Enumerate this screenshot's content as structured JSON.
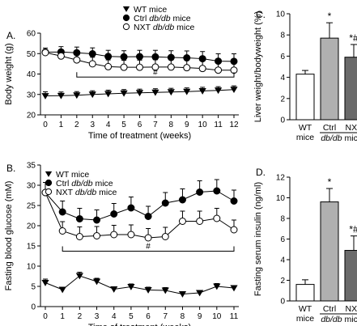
{
  "colors": {
    "ink": "#000000",
    "paper": "#ffffff",
    "ctrl_bar": "#b0b0b0",
    "nxt_bar": "#6a6a6a"
  },
  "chart_data": [
    {
      "panel": "A.",
      "type": "line",
      "xlabel": "Time of treatment (weeks)",
      "ylabel": "Body weight (g)",
      "x": [
        0,
        1,
        2,
        3,
        4,
        5,
        6,
        7,
        8,
        9,
        10,
        11,
        12
      ],
      "xticks": [
        "0",
        "1",
        "2",
        "3",
        "4",
        "5",
        "6",
        "7",
        "8",
        "9",
        "10",
        "11",
        "12"
      ],
      "ylim": [
        20,
        60
      ],
      "yticks": [
        20,
        30,
        40,
        50,
        60
      ],
      "legend": "top-center",
      "series": [
        {
          "name": "WT mice",
          "marker": "triangle-down",
          "values": [
            29.3,
            29.4,
            29.6,
            30.0,
            30.3,
            30.6,
            30.8,
            31.0,
            31.2,
            31.4,
            31.7,
            32.0,
            32.4
          ],
          "error": [
            2.0,
            1.8,
            1.8,
            1.8,
            1.8,
            1.8,
            1.8,
            1.8,
            1.8,
            1.8,
            1.8,
            1.8,
            1.8
          ]
        },
        {
          "name": "Ctrl db/db mice",
          "marker": "circle-filled",
          "values": [
            50.7,
            50.8,
            50.4,
            49.9,
            48.6,
            48.4,
            48.5,
            48.4,
            48.1,
            47.9,
            47.5,
            46.3,
            46.2
          ],
          "error": [
            2.0,
            2.6,
            2.8,
            2.9,
            3.0,
            3.0,
            3.1,
            3.2,
            3.3,
            3.4,
            3.5,
            3.6,
            3.7
          ]
        },
        {
          "name": "NXT db/db mice",
          "marker": "circle-open",
          "values": [
            50.5,
            48.8,
            46.9,
            45.0,
            43.6,
            43.3,
            43.3,
            43.4,
            43.4,
            43.1,
            42.7,
            41.9,
            41.9
          ],
          "error": [
            1.2,
            2.5,
            3.0,
            3.2,
            3.3,
            3.4,
            3.5,
            3.6,
            3.7,
            3.8,
            3.8,
            3.9,
            3.9
          ]
        }
      ],
      "annotation": {
        "text": "#",
        "from_x": 2,
        "to_x": 12,
        "y": 38.5
      }
    },
    {
      "panel": "B.",
      "type": "line",
      "xlabel": "Time of treatment (weeks)",
      "ylabel": "Fasting blood glucose (mM)",
      "x": [
        0,
        1,
        2,
        3,
        4,
        5,
        6,
        7,
        8,
        9,
        10,
        11
      ],
      "xticks": [
        "0",
        "1",
        "2",
        "3",
        "4",
        "5",
        "6",
        "7",
        "8",
        "9",
        "10",
        "11"
      ],
      "ylim": [
        0,
        35
      ],
      "yticks": [
        0,
        5,
        10,
        15,
        20,
        25,
        30,
        35
      ],
      "legend": "top-left",
      "series": [
        {
          "name": "WT mice",
          "marker": "triangle-down",
          "values": [
            5.9,
            4.2,
            7.6,
            6.2,
            4.3,
            4.9,
            4.1,
            4.0,
            3.1,
            3.4,
            5.0,
            4.6
          ],
          "error": [
            0.9,
            0.6,
            0.9,
            0.8,
            0.6,
            0.7,
            0.7,
            0.7,
            0.5,
            0.5,
            0.7,
            0.6
          ]
        },
        {
          "name": "Ctrl db/db mice",
          "marker": "circle-filled",
          "values": [
            28.2,
            23.4,
            21.7,
            21.4,
            22.9,
            24.4,
            22.3,
            25.6,
            26.4,
            28.3,
            28.6,
            26.1
          ],
          "error": [
            2.5,
            2.7,
            2.6,
            2.5,
            2.6,
            2.7,
            2.5,
            2.6,
            2.7,
            2.8,
            2.8,
            2.7
          ]
        },
        {
          "name": "NXT db/db mice",
          "marker": "circle-open",
          "values": [
            28.2,
            18.7,
            17.3,
            17.5,
            17.8,
            17.8,
            17.0,
            17.3,
            21.1,
            21.1,
            21.8,
            19.0
          ],
          "error": [
            2.5,
            2.3,
            2.4,
            2.3,
            2.3,
            2.4,
            2.3,
            2.3,
            2.5,
            2.5,
            2.5,
            2.4
          ]
        }
      ],
      "annotation": {
        "text": "#",
        "from_x": 1,
        "to_x": 11,
        "y": 13.7
      }
    },
    {
      "panel": "C.",
      "type": "bar",
      "ylabel": "Liver weight/bodyweight (%)",
      "categories": [
        "WT mice",
        "Ctrl",
        "NXT"
      ],
      "group_label": "db/db mice",
      "values": [
        4.3,
        7.7,
        5.9
      ],
      "error": [
        0.35,
        1.45,
        1.2
      ],
      "significance": [
        "",
        "*",
        "*#"
      ],
      "ylim": [
        0,
        10
      ],
      "yticks": [
        0,
        2,
        4,
        6,
        8,
        10
      ]
    },
    {
      "panel": "D.",
      "type": "bar",
      "ylabel": "Fasting serum insulin (ng/ml)",
      "categories": [
        "WT mice",
        "Ctrl",
        "NXT"
      ],
      "group_label": "db/db mice",
      "values": [
        1.6,
        9.6,
        4.9
      ],
      "error": [
        0.45,
        1.3,
        1.4
      ],
      "significance": [
        "",
        "*",
        "*#"
      ],
      "ylim": [
        0,
        12
      ],
      "yticks": [
        0,
        2,
        4,
        6,
        8,
        10,
        12
      ]
    }
  ]
}
